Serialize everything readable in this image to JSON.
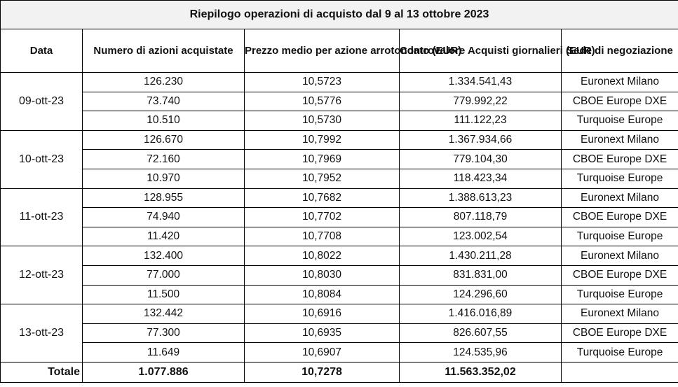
{
  "title": "Riepilogo operazioni di acquisto dal 9 al 13 ottobre 2023",
  "headers": {
    "date": "Data",
    "shares": "Numero di azioni acquistate",
    "price": "Prezzo medio per azione arrotondato (EUR)",
    "value": "Controvalore Acquisti giornalieri (EUR)",
    "venue": "Sede di negoziazione"
  },
  "days": [
    {
      "date": "09-ott-23",
      "rows": [
        {
          "shares": "126.230",
          "price": "10,5723",
          "value": "1.334.541,43",
          "venue": "Euronext Milano"
        },
        {
          "shares": "73.740",
          "price": "10,5776",
          "value": "779.992,22",
          "venue": "CBOE Europe DXE"
        },
        {
          "shares": "10.510",
          "price": "10,5730",
          "value": "111.122,23",
          "venue": "Turquoise Europe"
        }
      ]
    },
    {
      "date": "10-ott-23",
      "rows": [
        {
          "shares": "126.670",
          "price": "10,7992",
          "value": "1.367.934,66",
          "venue": "Euronext Milano"
        },
        {
          "shares": "72.160",
          "price": "10,7969",
          "value": "779.104,30",
          "venue": "CBOE Europe DXE"
        },
        {
          "shares": "10.970",
          "price": "10,7952",
          "value": "118.423,34",
          "venue": "Turquoise Europe"
        }
      ]
    },
    {
      "date": "11-ott-23",
      "rows": [
        {
          "shares": "128.955",
          "price": "10,7682",
          "value": "1.388.613,23",
          "venue": "Euronext Milano"
        },
        {
          "shares": "74.940",
          "price": "10,7702",
          "value": "807.118,79",
          "venue": "CBOE Europe DXE"
        },
        {
          "shares": "11.420",
          "price": "10,7708",
          "value": "123.002,54",
          "venue": "Turquoise Europe"
        }
      ]
    },
    {
      "date": "12-ott-23",
      "rows": [
        {
          "shares": "132.400",
          "price": "10,8022",
          "value": "1.430.211,28",
          "venue": "Euronext Milano"
        },
        {
          "shares": "77.000",
          "price": "10,8030",
          "value": "831.831,00",
          "venue": "CBOE Europe DXE"
        },
        {
          "shares": "11.500",
          "price": "10,8084",
          "value": "124.296,60",
          "venue": "Turquoise Europe"
        }
      ]
    },
    {
      "date": "13-ott-23",
      "rows": [
        {
          "shares": "132.442",
          "price": "10,6916",
          "value": "1.416.016,89",
          "venue": "Euronext Milano"
        },
        {
          "shares": "77.300",
          "price": "10,6935",
          "value": "826.607,55",
          "venue": "CBOE Europe DXE"
        },
        {
          "shares": "11.649",
          "price": "10,6907",
          "value": "124.535,96",
          "venue": "Turquoise Europe"
        }
      ]
    }
  ],
  "total": {
    "label": "Totale",
    "shares": "1.077.886",
    "price": "10,7278",
    "value": "11.563.352,02",
    "venue": ""
  }
}
